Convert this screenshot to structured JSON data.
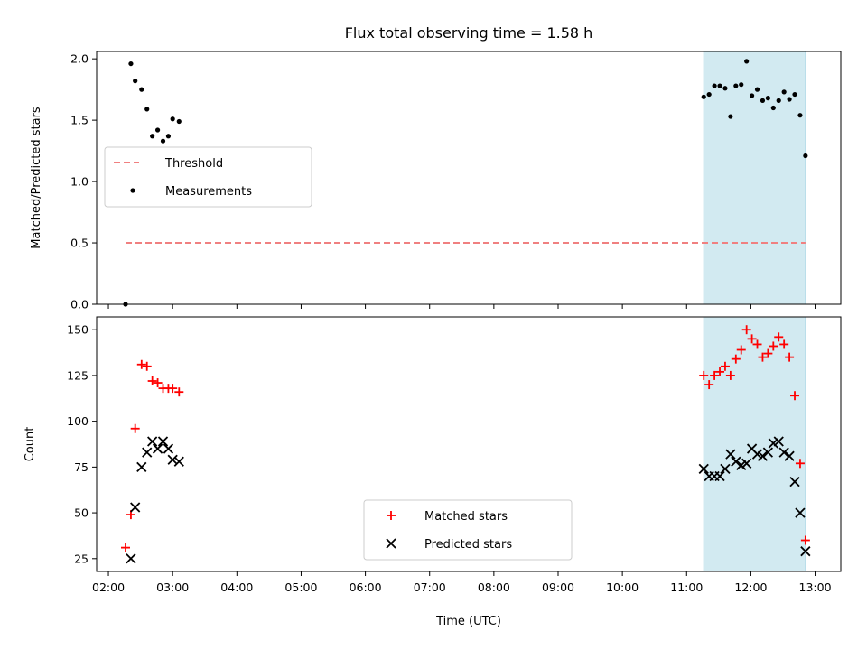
{
  "chart_data": {
    "title": "Flux total observing time = 1.58 h",
    "xlabel": "Time (UTC)",
    "x_ticks": [
      "02:00",
      "03:00",
      "04:00",
      "05:00",
      "06:00",
      "07:00",
      "08:00",
      "09:00",
      "10:00",
      "11:00",
      "12:00",
      "13:00"
    ],
    "x_range": [
      "01:49",
      "13:24"
    ],
    "highlight_span": [
      "11:16",
      "12:51"
    ],
    "highlight_color": "#add8e6",
    "panels": [
      {
        "type": "scatter",
        "ylabel": "Matched/Predicted stars",
        "ylim": [
          0,
          2.06
        ],
        "yticks": [
          "0.0",
          "0.5",
          "1.0",
          "1.5",
          "2.0"
        ],
        "legend_position": "center-left",
        "threshold": {
          "name": "Threshold",
          "value": 0.5,
          "x_range": [
            "02:16",
            "12:51"
          ],
          "color": "#f08080",
          "style": "dashed"
        },
        "series": [
          {
            "name": "Measurements",
            "color": "#000000",
            "marker": "dot",
            "points": [
              [
                "02:16",
                0.0
              ],
              [
                "02:21",
                1.96
              ],
              [
                "02:25",
                1.82
              ],
              [
                "02:31",
                1.75
              ],
              [
                "02:36",
                1.59
              ],
              [
                "02:41",
                1.37
              ],
              [
                "02:46",
                1.42
              ],
              [
                "02:51",
                1.33
              ],
              [
                "02:56",
                1.37
              ],
              [
                "03:00",
                1.51
              ],
              [
                "03:06",
                1.49
              ],
              [
                "11:16",
                1.69
              ],
              [
                "11:21",
                1.71
              ],
              [
                "11:26",
                1.78
              ],
              [
                "11:31",
                1.78
              ],
              [
                "11:36",
                1.76
              ],
              [
                "11:41",
                1.53
              ],
              [
                "11:46",
                1.78
              ],
              [
                "11:51",
                1.79
              ],
              [
                "11:56",
                1.98
              ],
              [
                "12:01",
                1.7
              ],
              [
                "12:06",
                1.75
              ],
              [
                "12:11",
                1.66
              ],
              [
                "12:16",
                1.68
              ],
              [
                "12:21",
                1.6
              ],
              [
                "12:26",
                1.66
              ],
              [
                "12:31",
                1.73
              ],
              [
                "12:36",
                1.67
              ],
              [
                "12:41",
                1.71
              ],
              [
                "12:46",
                1.54
              ],
              [
                "12:51",
                1.21
              ]
            ]
          }
        ]
      },
      {
        "type": "scatter",
        "ylabel": "Count",
        "ylim": [
          18,
          157
        ],
        "yticks": [
          "25",
          "50",
          "75",
          "100",
          "125",
          "150"
        ],
        "legend_position": "bottom-center",
        "series": [
          {
            "name": "Matched stars",
            "color": "#ff0000",
            "marker": "plus",
            "points": [
              [
                "02:16",
                31
              ],
              [
                "02:21",
                49
              ],
              [
                "02:25",
                96
              ],
              [
                "02:31",
                131
              ],
              [
                "02:36",
                130
              ],
              [
                "02:41",
                122
              ],
              [
                "02:46",
                121
              ],
              [
                "02:51",
                118
              ],
              [
                "02:56",
                118
              ],
              [
                "03:00",
                118
              ],
              [
                "03:06",
                116
              ],
              [
                "11:16",
                125
              ],
              [
                "11:21",
                120
              ],
              [
                "11:26",
                125
              ],
              [
                "11:31",
                127
              ],
              [
                "11:36",
                130
              ],
              [
                "11:41",
                125
              ],
              [
                "11:46",
                134
              ],
              [
                "11:51",
                139
              ],
              [
                "11:56",
                150
              ],
              [
                "12:01",
                145
              ],
              [
                "12:06",
                142
              ],
              [
                "12:11",
                135
              ],
              [
                "12:16",
                137
              ],
              [
                "12:21",
                141
              ],
              [
                "12:26",
                146
              ],
              [
                "12:31",
                142
              ],
              [
                "12:36",
                135
              ],
              [
                "12:41",
                114
              ],
              [
                "12:46",
                77
              ],
              [
                "12:51",
                35
              ]
            ]
          },
          {
            "name": "Predicted stars",
            "color": "#000000",
            "marker": "x",
            "points": [
              [
                "02:21",
                25
              ],
              [
                "02:25",
                53
              ],
              [
                "02:31",
                75
              ],
              [
                "02:36",
                83
              ],
              [
                "02:41",
                89
              ],
              [
                "02:46",
                85
              ],
              [
                "02:51",
                89
              ],
              [
                "02:56",
                85
              ],
              [
                "03:00",
                79
              ],
              [
                "03:06",
                78
              ],
              [
                "11:16",
                74
              ],
              [
                "11:21",
                70
              ],
              [
                "11:26",
                70
              ],
              [
                "11:31",
                70
              ],
              [
                "11:36",
                74
              ],
              [
                "11:41",
                82
              ],
              [
                "11:46",
                78
              ],
              [
                "11:51",
                76
              ],
              [
                "11:56",
                77
              ],
              [
                "12:01",
                85
              ],
              [
                "12:06",
                82
              ],
              [
                "12:11",
                81
              ],
              [
                "12:16",
                83
              ],
              [
                "12:21",
                88
              ],
              [
                "12:26",
                89
              ],
              [
                "12:31",
                83
              ],
              [
                "12:36",
                81
              ],
              [
                "12:41",
                67
              ],
              [
                "12:46",
                50
              ],
              [
                "12:51",
                29
              ]
            ]
          }
        ]
      }
    ]
  }
}
